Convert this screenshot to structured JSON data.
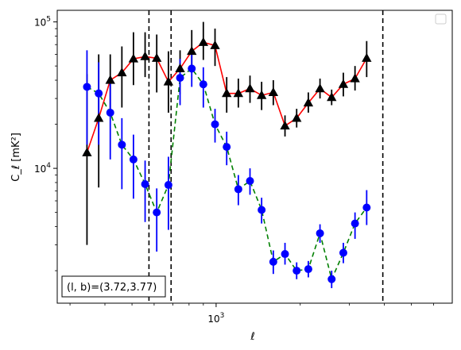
{
  "chart_data": {
    "type": "scatter",
    "x_scale": "log",
    "y_scale": "log",
    "xlim": [
      270,
      7000
    ],
    "ylim": [
      1200,
      120000
    ],
    "xlabel": "ℓ",
    "ylabel": "C_ℓ  [mK²]",
    "x_tick_labels": [
      {
        "value": 1000,
        "base": "10",
        "exp": "3"
      }
    ],
    "y_tick_labels": [
      {
        "value": 10000,
        "base": "10",
        "exp": "4"
      },
      {
        "value": 100000,
        "base": "10",
        "exp": "5"
      }
    ],
    "annotation": "(l, b)=(3.72,3.77)",
    "vlines_x": [
      575,
      690,
      3950
    ],
    "legend": {
      "placement": "top-right",
      "entries": []
    },
    "grid": false,
    "series": [
      {
        "line_color": "#ff0000",
        "line_style": "solid",
        "marker": "triangle",
        "marker_color": "#000000",
        "errorbar_color": "#000000",
        "points": [
          {
            "x": 345,
            "y": 12800,
            "lo": 3000,
            "hi": 44000
          },
          {
            "x": 380,
            "y": 22000,
            "lo": 7400,
            "hi": 60000
          },
          {
            "x": 418,
            "y": 40000,
            "lo": 23000,
            "hi": 60000
          },
          {
            "x": 460,
            "y": 45000,
            "lo": 26000,
            "hi": 68000
          },
          {
            "x": 506,
            "y": 56000,
            "lo": 37000,
            "hi": 85000
          },
          {
            "x": 557,
            "y": 58000,
            "lo": 42000,
            "hi": 85000
          },
          {
            "x": 613,
            "y": 56500,
            "lo": 33000,
            "hi": 82000
          },
          {
            "x": 675,
            "y": 39000,
            "lo": 24000,
            "hi": 63000
          },
          {
            "x": 743,
            "y": 48000,
            "lo": 32000,
            "hi": 64000
          },
          {
            "x": 818,
            "y": 63000,
            "lo": 45000,
            "hi": 88000
          },
          {
            "x": 900,
            "y": 72500,
            "lo": 55000,
            "hi": 100000
          },
          {
            "x": 991,
            "y": 69000,
            "lo": 50000,
            "hi": 90000
          },
          {
            "x": 1091,
            "y": 32500,
            "lo": 24000,
            "hi": 42000
          },
          {
            "x": 1201,
            "y": 32500,
            "lo": 26000,
            "hi": 41000
          },
          {
            "x": 1322,
            "y": 35000,
            "lo": 28000,
            "hi": 43000
          },
          {
            "x": 1455,
            "y": 31500,
            "lo": 25000,
            "hi": 39000
          },
          {
            "x": 1602,
            "y": 33000,
            "lo": 27000,
            "hi": 40000
          },
          {
            "x": 1764,
            "y": 19500,
            "lo": 16500,
            "hi": 23000
          },
          {
            "x": 1942,
            "y": 22000,
            "lo": 19000,
            "hi": 25500
          },
          {
            "x": 2138,
            "y": 28000,
            "lo": 24000,
            "hi": 33000
          },
          {
            "x": 2354,
            "y": 35000,
            "lo": 30000,
            "hi": 41000
          },
          {
            "x": 2591,
            "y": 30500,
            "lo": 27000,
            "hi": 34500
          },
          {
            "x": 2853,
            "y": 37500,
            "lo": 31000,
            "hi": 45000
          },
          {
            "x": 3141,
            "y": 41000,
            "lo": 34000,
            "hi": 50000
          },
          {
            "x": 3458,
            "y": 56500,
            "lo": 42000,
            "hi": 74000
          }
        ]
      },
      {
        "line_color": "#008000",
        "line_style": "dashed",
        "marker": "circle",
        "marker_color": "#0000ff",
        "errorbar_color": "#0000ff",
        "points": [
          {
            "x": 345,
            "y": 36000,
            "lo": 14500,
            "hi": 64000
          },
          {
            "x": 380,
            "y": 32500,
            "lo": 14500,
            "hi": 53000
          },
          {
            "x": 418,
            "y": 24000,
            "lo": 11500,
            "hi": 38000
          },
          {
            "x": 460,
            "y": 14500,
            "lo": 7200,
            "hi": 22000
          },
          {
            "x": 506,
            "y": 11500,
            "lo": 6200,
            "hi": 17000
          },
          {
            "x": 557,
            "y": 7800,
            "lo": 4300,
            "hi": 11300
          },
          {
            "x": 613,
            "y": 5000,
            "lo": 2700,
            "hi": 7300
          },
          {
            "x": 675,
            "y": 7700,
            "lo": 3800,
            "hi": 12000
          },
          {
            "x": 743,
            "y": 41500,
            "lo": 27000,
            "hi": 56000
          },
          {
            "x": 818,
            "y": 48000,
            "lo": 36000,
            "hi": 60000
          },
          {
            "x": 900,
            "y": 37500,
            "lo": 26000,
            "hi": 49000
          },
          {
            "x": 991,
            "y": 20000,
            "lo": 15000,
            "hi": 25500
          },
          {
            "x": 1091,
            "y": 14000,
            "lo": 10500,
            "hi": 17800
          },
          {
            "x": 1201,
            "y": 7200,
            "lo": 5600,
            "hi": 9000
          },
          {
            "x": 1322,
            "y": 8200,
            "lo": 6600,
            "hi": 10000
          },
          {
            "x": 1455,
            "y": 5200,
            "lo": 4200,
            "hi": 6300
          },
          {
            "x": 1602,
            "y": 2300,
            "lo": 1900,
            "hi": 2750
          },
          {
            "x": 1764,
            "y": 2600,
            "lo": 2200,
            "hi": 3100
          },
          {
            "x": 1942,
            "y": 2000,
            "lo": 1750,
            "hi": 2280
          },
          {
            "x": 2138,
            "y": 2050,
            "lo": 1800,
            "hi": 2330
          },
          {
            "x": 2354,
            "y": 3600,
            "lo": 3100,
            "hi": 4150
          },
          {
            "x": 2591,
            "y": 1750,
            "lo": 1520,
            "hi": 2000
          },
          {
            "x": 2853,
            "y": 2650,
            "lo": 2250,
            "hi": 3100
          },
          {
            "x": 3141,
            "y": 4200,
            "lo": 3300,
            "hi": 5000
          },
          {
            "x": 3458,
            "y": 5400,
            "lo": 4100,
            "hi": 7100
          }
        ]
      }
    ]
  }
}
